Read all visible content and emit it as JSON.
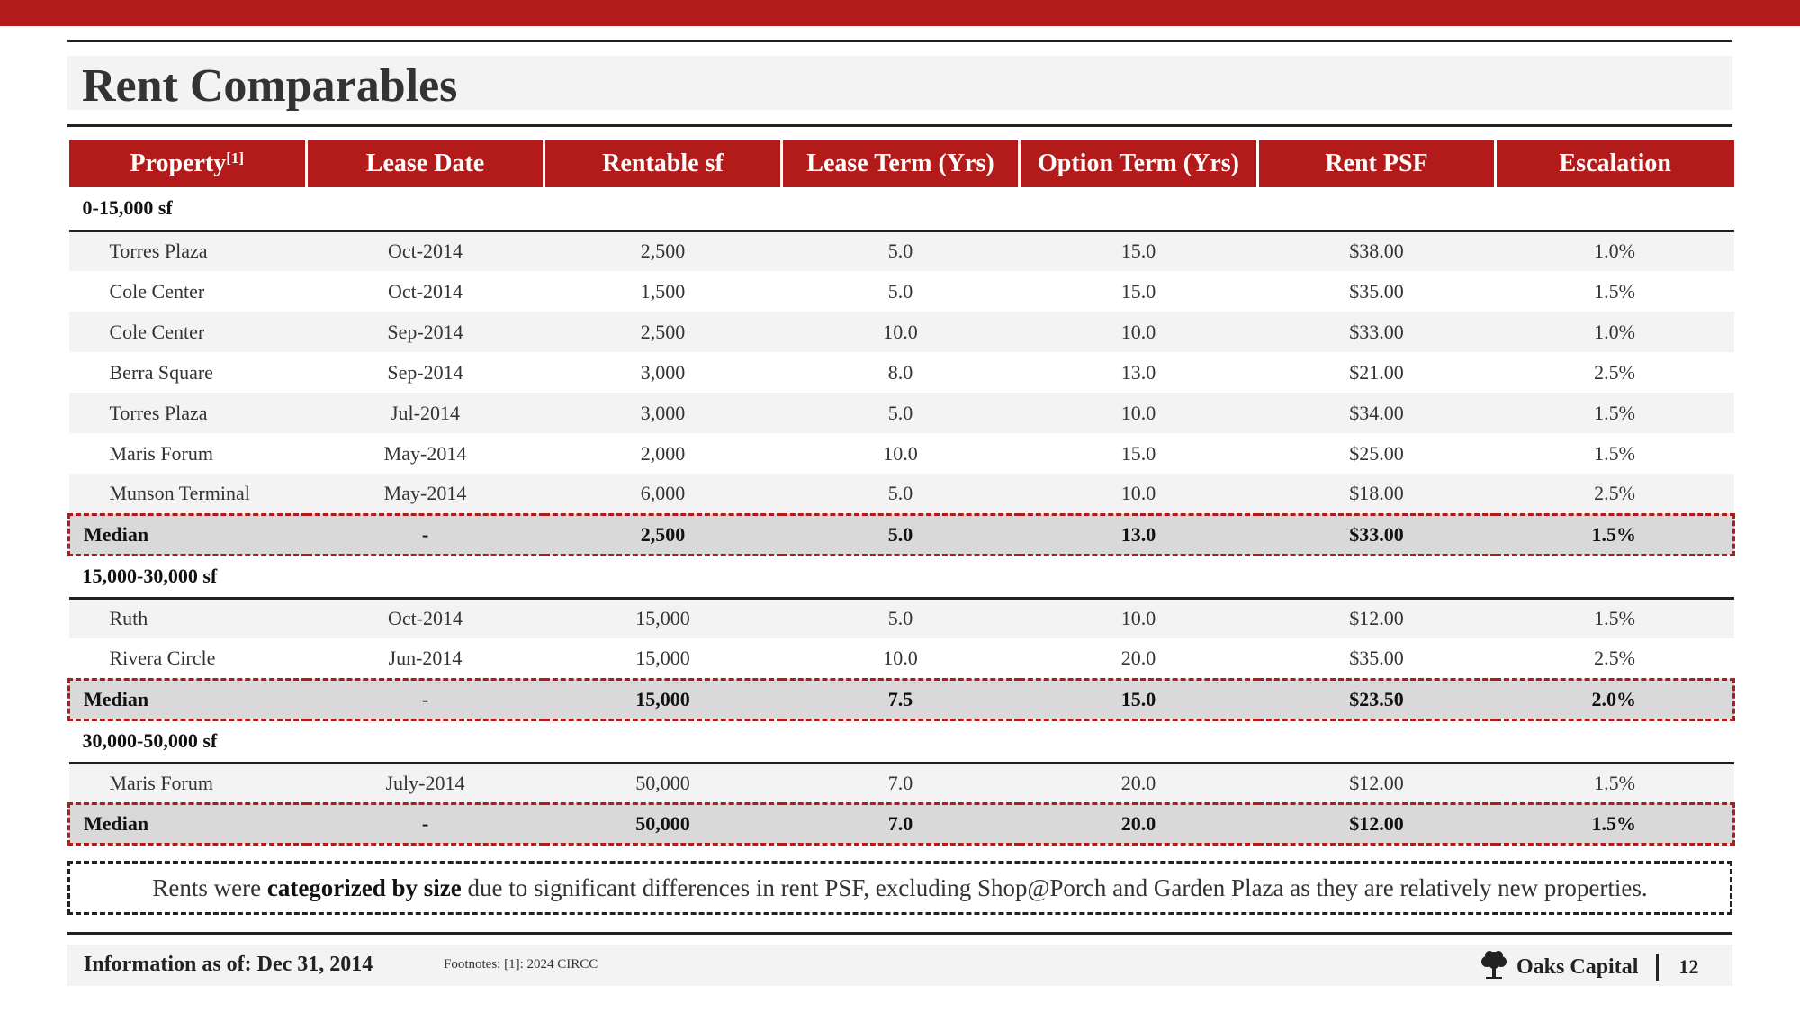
{
  "title": "Rent Comparables",
  "table": {
    "headers": [
      "Property",
      "Lease Date",
      "Rentable sf",
      "Lease Term (Yrs)",
      "Option Term (Yrs)",
      "Rent PSF",
      "Escalation"
    ],
    "property_footnote_mark": "[1]",
    "groups": [
      {
        "label": "0-15,000 sf",
        "rows": [
          [
            "Torres Plaza",
            "Oct-2014",
            "2,500",
            "5.0",
            "15.0",
            "$38.00",
            "1.0%"
          ],
          [
            "Cole Center",
            "Oct-2014",
            "1,500",
            "5.0",
            "15.0",
            "$35.00",
            "1.5%"
          ],
          [
            "Cole Center",
            "Sep-2014",
            "2,500",
            "10.0",
            "10.0",
            "$33.00",
            "1.0%"
          ],
          [
            "Berra Square",
            "Sep-2014",
            "3,000",
            "8.0",
            "13.0",
            "$21.00",
            "2.5%"
          ],
          [
            "Torres Plaza",
            "Jul-2014",
            "3,000",
            "5.0",
            "10.0",
            "$34.00",
            "1.5%"
          ],
          [
            "Maris Forum",
            "May-2014",
            "2,000",
            "10.0",
            "15.0",
            "$25.00",
            "1.5%"
          ],
          [
            "Munson Terminal",
            "May-2014",
            "6,000",
            "5.0",
            "10.0",
            "$18.00",
            "2.5%"
          ]
        ],
        "median": [
          "Median",
          "-",
          "2,500",
          "5.0",
          "13.0",
          "$33.00",
          "1.5%"
        ]
      },
      {
        "label": "15,000-30,000 sf",
        "rows": [
          [
            "Ruth",
            "Oct-2014",
            "15,000",
            "5.0",
            "10.0",
            "$12.00",
            "1.5%"
          ],
          [
            "Rivera Circle",
            "Jun-2014",
            "15,000",
            "10.0",
            "20.0",
            "$35.00",
            "2.5%"
          ]
        ],
        "median": [
          "Median",
          "-",
          "15,000",
          "7.5",
          "15.0",
          "$23.50",
          "2.0%"
        ]
      },
      {
        "label": "30,000-50,000 sf",
        "rows": [
          [
            "Maris Forum",
            "July-2014",
            "50,000",
            "7.0",
            "20.0",
            "$12.00",
            "1.5%"
          ]
        ],
        "median": [
          "Median",
          "-",
          "50,000",
          "7.0",
          "20.0",
          "$12.00",
          "1.5%"
        ]
      }
    ]
  },
  "note": {
    "before": "Rents were ",
    "bold": "categorized by size",
    "after": " due to significant differences in rent PSF, excluding Shop@Porch and Garden Plaza as they are relatively new properties."
  },
  "footer": {
    "info": "Information as of: Dec 31, 2014",
    "footnote": "Footnotes: [1]: 2024 CIRCC",
    "brand": "Oaks Capital",
    "brand_icon": "oak-tree-icon",
    "page": "12"
  },
  "colors": {
    "accent": "#b31b1b",
    "band": "#f3f3f3",
    "median_bg": "#d9d9d9"
  }
}
